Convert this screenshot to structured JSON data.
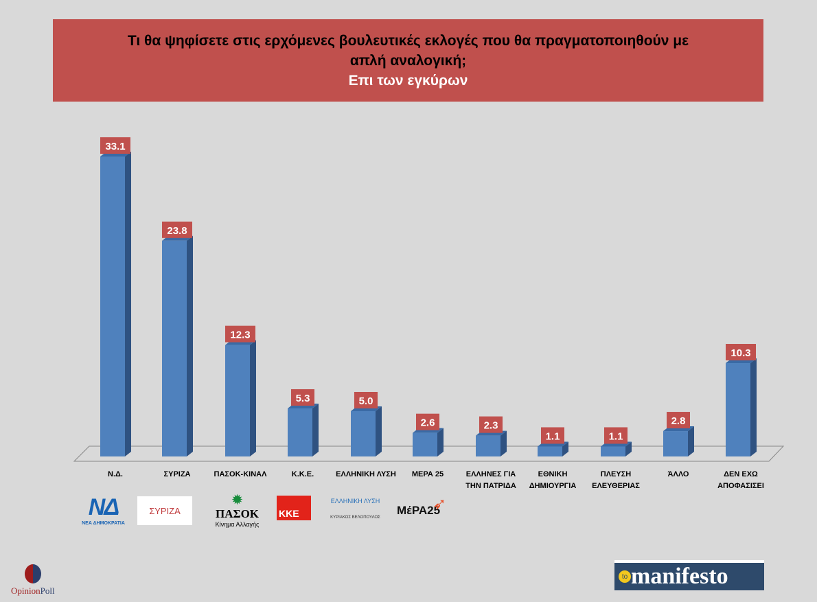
{
  "chart_data": {
    "type": "bar",
    "title": "Τι θα ψηφίσετε στις ερχόμενες βουλευτικές εκλογές που θα πραγματοποιηθούν με απλή αναλογική;",
    "subtitle": "Επι των εγκύρων",
    "categories": [
      "Ν.Δ.",
      "ΣΥΡΙΖΑ",
      "ΠΑΣΟΚ-ΚΙΝΑΛ",
      "Κ.Κ.Ε.",
      "ΕΛΛΗΝΙΚΗ ΛΥΣΗ",
      "ΜΕΡΑ 25",
      "ΕΛΛΗΝΕΣ ΓΙΑ ΤΗΝ ΠΑΤΡΙΔΑ",
      "ΕΘΝΙΚΗ ΔΗΜΙΟΥΡΓΙΑ",
      "ΠΛΕΥΣΗ ΕΛΕΥΘΕΡΙΑΣ",
      "ΆΛΛΟ",
      "ΔΕΝ ΕΧΩ ΑΠΟΦΑΣΙΣΕΙ"
    ],
    "values": [
      33.1,
      23.8,
      12.3,
      5.3,
      5.0,
      2.6,
      2.3,
      1.1,
      1.1,
      2.8,
      10.3
    ],
    "labels": [
      "33.1",
      "23.8",
      "12.3",
      "5.3",
      "5.0",
      "2.6",
      "2.3",
      "1.1",
      "1.1",
      "2.8",
      "10.3"
    ],
    "ylim": [
      0,
      34
    ],
    "xlabel": "",
    "ylabel": "",
    "colors": {
      "bar": "#4f81bd",
      "bar_side": "#2f5281",
      "label_bg": "#c0504d"
    }
  },
  "title": {
    "line1": "Τι θα ψηφίσετε στις ερχόμενες βουλευτικές εκλογές που θα πραγματοποιηθούν με",
    "line2": "απλή αναλογική;",
    "line3": "Επι των εγκύρων"
  },
  "logos": {
    "nd": "ΝΔ",
    "nd_sub": "ΝΕΑ ΔΗΜΟΚΡΑΤΙΑ",
    "syriza": "ΣΥΡΙΖΑ",
    "pasok": "ΠΑΣΟΚ",
    "pasok_sub": "Κίνημα Αλλαγής",
    "kke": "ΚΚΕ",
    "el": "ΕΛΛΗΝΙΚΗ ΛΥΣΗ",
    "el_sub": "ΚΥΡΙΑΚΟΣ ΒΕΛΟΠΟΥΛΟΣ",
    "mera": "ΜέΡΑ25",
    "opinion": "Opinion",
    "poll": "Poll",
    "manifesto_to": "to",
    "manifesto": "manifesto"
  }
}
